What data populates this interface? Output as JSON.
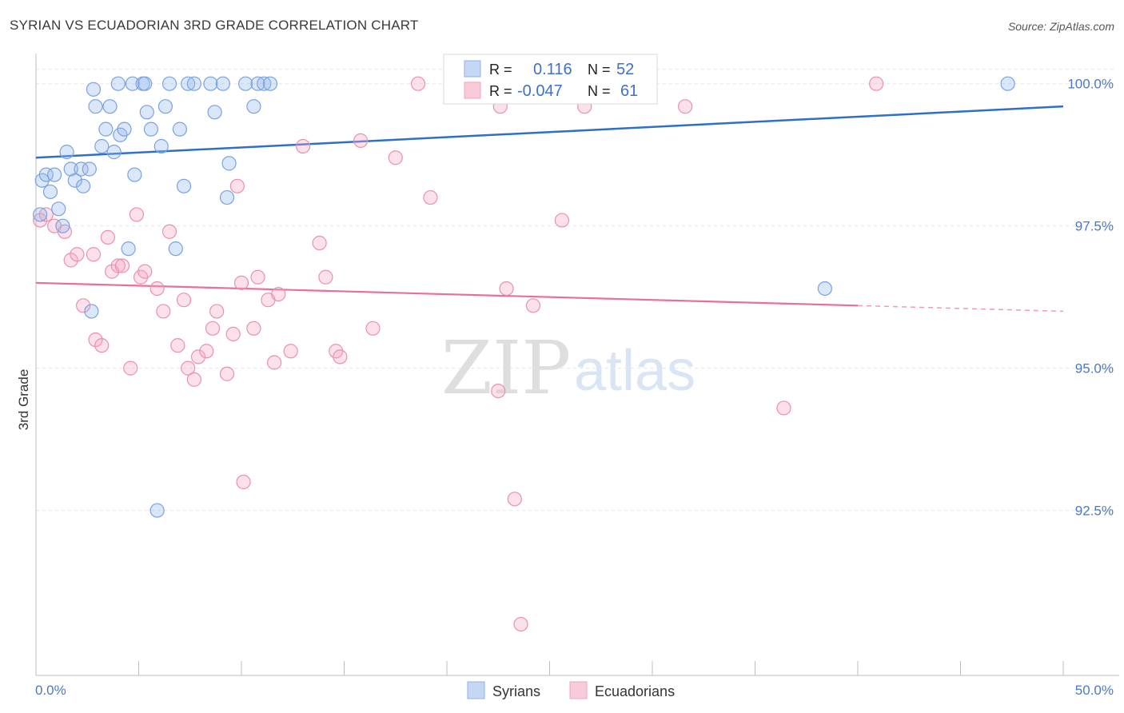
{
  "header": {
    "title": "SYRIAN VS ECUADORIAN 3RD GRADE CORRELATION CHART",
    "source": "Source: ZipAtlas.com"
  },
  "watermark": {
    "zip": "ZIP",
    "atlas": "atlas"
  },
  "legend_box": {
    "rows": [
      {
        "r_label": "R =",
        "r_value": "0.116",
        "n_label": "N =",
        "n_value": "52",
        "color": "#a9c4ee"
      },
      {
        "r_label": "R =",
        "r_value": "-0.047",
        "n_label": "N =",
        "n_value": "61",
        "color": "#f5b4c8"
      }
    ]
  },
  "bottom_legend": {
    "items": [
      "Syrians",
      "Ecuadorians"
    ]
  },
  "chart_data": {
    "type": "scatter",
    "title": "SYRIAN VS ECUADORIAN 3RD GRADE CORRELATION CHART",
    "xlabel": "",
    "ylabel": "3rd Grade",
    "xlim": [
      0,
      50
    ],
    "ylim": [
      89.6,
      100.6
    ],
    "x_tick_labels": [
      "0.0%",
      "50.0%"
    ],
    "y_ticks": [
      92.5,
      95.0,
      97.5,
      100.0
    ],
    "y_tick_labels": [
      "92.5%",
      "95.0%",
      "97.5%",
      "100.0%"
    ],
    "grid": true,
    "legend_position": "bottom-center",
    "colors": {
      "syrians": "#5b8ee0",
      "ecuadorians": "#ea6f98"
    },
    "series": [
      {
        "name": "Syrians",
        "r": 0.116,
        "n": 52,
        "trend": {
          "x": [
            0,
            50
          ],
          "y": [
            98.7,
            99.6
          ]
        },
        "points": [
          [
            0.2,
            97.7
          ],
          [
            0.3,
            98.3
          ],
          [
            0.5,
            98.4
          ],
          [
            0.7,
            98.1
          ],
          [
            0.9,
            98.4
          ],
          [
            1.1,
            97.8
          ],
          [
            1.3,
            97.5
          ],
          [
            1.5,
            98.8
          ],
          [
            1.7,
            98.5
          ],
          [
            1.9,
            98.3
          ],
          [
            2.2,
            98.5
          ],
          [
            2.3,
            98.2
          ],
          [
            2.6,
            98.5
          ],
          [
            2.7,
            96.0
          ],
          [
            2.8,
            99.9
          ],
          [
            2.9,
            99.6
          ],
          [
            3.2,
            98.9
          ],
          [
            3.4,
            99.2
          ],
          [
            3.6,
            99.6
          ],
          [
            3.8,
            98.8
          ],
          [
            4.0,
            100.0
          ],
          [
            4.1,
            99.1
          ],
          [
            4.3,
            99.2
          ],
          [
            4.5,
            97.1
          ],
          [
            4.7,
            100.0
          ],
          [
            4.8,
            98.4
          ],
          [
            5.2,
            100.0
          ],
          [
            5.3,
            100.0
          ],
          [
            5.4,
            99.5
          ],
          [
            5.6,
            99.2
          ],
          [
            5.9,
            92.5
          ],
          [
            6.1,
            98.9
          ],
          [
            6.3,
            99.6
          ],
          [
            6.5,
            100.0
          ],
          [
            6.8,
            97.1
          ],
          [
            7.0,
            99.2
          ],
          [
            7.2,
            98.2
          ],
          [
            7.4,
            100.0
          ],
          [
            7.7,
            100.0
          ],
          [
            8.5,
            100.0
          ],
          [
            8.7,
            99.5
          ],
          [
            9.1,
            100.0
          ],
          [
            9.3,
            98.0
          ],
          [
            9.4,
            98.6
          ],
          [
            10.2,
            100.0
          ],
          [
            10.6,
            99.6
          ],
          [
            10.8,
            100.0
          ],
          [
            11.1,
            100.0
          ],
          [
            11.4,
            100.0
          ],
          [
            27.8,
            100.0
          ],
          [
            38.4,
            96.4
          ],
          [
            47.3,
            100.0
          ]
        ]
      },
      {
        "name": "Ecuadorians",
        "r": -0.047,
        "n": 61,
        "trend": {
          "x": [
            0,
            40
          ],
          "y": [
            96.5,
            96.1
          ],
          "dashed_to": [
            50,
            96.0
          ]
        },
        "points": [
          [
            0.2,
            97.6
          ],
          [
            0.5,
            97.7
          ],
          [
            0.9,
            97.5
          ],
          [
            1.4,
            97.4
          ],
          [
            1.7,
            96.9
          ],
          [
            2.0,
            97.0
          ],
          [
            2.3,
            96.1
          ],
          [
            2.8,
            97.0
          ],
          [
            2.9,
            95.5
          ],
          [
            3.2,
            95.4
          ],
          [
            3.5,
            97.3
          ],
          [
            3.7,
            96.7
          ],
          [
            4.0,
            96.8
          ],
          [
            4.2,
            96.8
          ],
          [
            4.6,
            95.0
          ],
          [
            4.9,
            97.7
          ],
          [
            5.1,
            96.6
          ],
          [
            5.3,
            96.7
          ],
          [
            5.9,
            96.4
          ],
          [
            6.2,
            96.0
          ],
          [
            6.5,
            97.4
          ],
          [
            6.9,
            95.4
          ],
          [
            7.2,
            96.2
          ],
          [
            7.4,
            95.0
          ],
          [
            7.7,
            94.8
          ],
          [
            7.9,
            95.2
          ],
          [
            8.3,
            95.3
          ],
          [
            8.6,
            95.7
          ],
          [
            8.8,
            96.0
          ],
          [
            9.3,
            94.9
          ],
          [
            9.6,
            95.6
          ],
          [
            9.8,
            98.2
          ],
          [
            10.0,
            96.5
          ],
          [
            10.1,
            93.0
          ],
          [
            10.6,
            95.7
          ],
          [
            10.8,
            96.6
          ],
          [
            11.3,
            96.2
          ],
          [
            11.6,
            95.1
          ],
          [
            11.8,
            96.3
          ],
          [
            12.4,
            95.3
          ],
          [
            13.0,
            98.9
          ],
          [
            13.8,
            97.2
          ],
          [
            14.1,
            96.6
          ],
          [
            14.6,
            95.3
          ],
          [
            14.8,
            95.2
          ],
          [
            15.8,
            99.0
          ],
          [
            16.4,
            95.7
          ],
          [
            17.5,
            98.7
          ],
          [
            18.6,
            100.0
          ],
          [
            19.2,
            98.0
          ],
          [
            22.5,
            94.6
          ],
          [
            22.6,
            99.6
          ],
          [
            22.9,
            96.4
          ],
          [
            23.3,
            92.7
          ],
          [
            23.6,
            90.5
          ],
          [
            24.2,
            96.1
          ],
          [
            25.6,
            97.6
          ],
          [
            26.7,
            99.6
          ],
          [
            31.6,
            99.6
          ],
          [
            36.4,
            94.3
          ],
          [
            40.9,
            100.0
          ]
        ]
      }
    ]
  }
}
